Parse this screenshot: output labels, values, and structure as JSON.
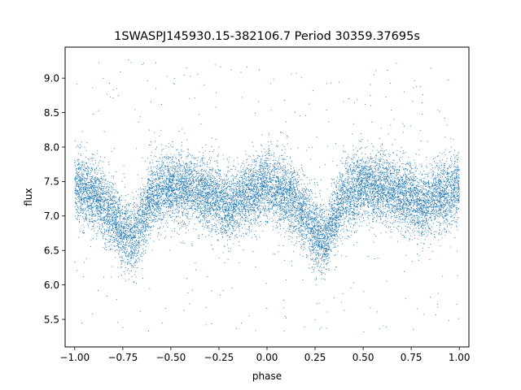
{
  "chart_data": {
    "type": "scatter",
    "title": "1SWASPJ145930.15-382106.7 Period 30359.37695s",
    "xlabel": "phase",
    "ylabel": "flux",
    "xlim": [
      -1.05,
      1.05
    ],
    "ylim": [
      5.1,
      9.45
    ],
    "xticks": [
      -1.0,
      -0.75,
      -0.5,
      -0.25,
      0.0,
      0.25,
      0.5,
      0.75,
      1.0
    ],
    "xtick_labels": [
      "−1.00",
      "−0.75",
      "−0.50",
      "−0.25",
      "0.00",
      "0.25",
      "0.50",
      "0.75",
      "1.00"
    ],
    "yticks": [
      5.5,
      6.0,
      6.5,
      7.0,
      7.5,
      8.0,
      8.5,
      9.0
    ],
    "ytick_labels": [
      "5.5",
      "6.0",
      "6.5",
      "7.0",
      "7.5",
      "8.0",
      "8.5",
      "9.0"
    ],
    "grid": false,
    "point_color": "#1f77b4",
    "series": [
      {
        "phase_range": [
          -1.0,
          1.0
        ],
        "light_curve": {
          "phase": [
            -1.0,
            -0.9,
            -0.8,
            -0.75,
            -0.7,
            -0.65,
            -0.6,
            -0.5,
            -0.4,
            -0.3,
            -0.2,
            -0.1,
            0.0,
            0.1,
            0.2,
            0.25,
            0.3,
            0.35,
            0.4,
            0.5,
            0.6,
            0.7,
            0.8,
            0.9,
            1.0
          ],
          "median_flux": [
            7.42,
            7.3,
            7.0,
            6.78,
            6.65,
            6.95,
            7.3,
            7.42,
            7.4,
            7.3,
            7.15,
            7.3,
            7.45,
            7.3,
            7.0,
            6.78,
            6.65,
            6.95,
            7.3,
            7.45,
            7.4,
            7.3,
            7.2,
            7.3,
            7.42
          ]
        },
        "scatter_sigma": 0.25,
        "outlier_range": [
          5.3,
          9.3
        ]
      }
    ]
  }
}
